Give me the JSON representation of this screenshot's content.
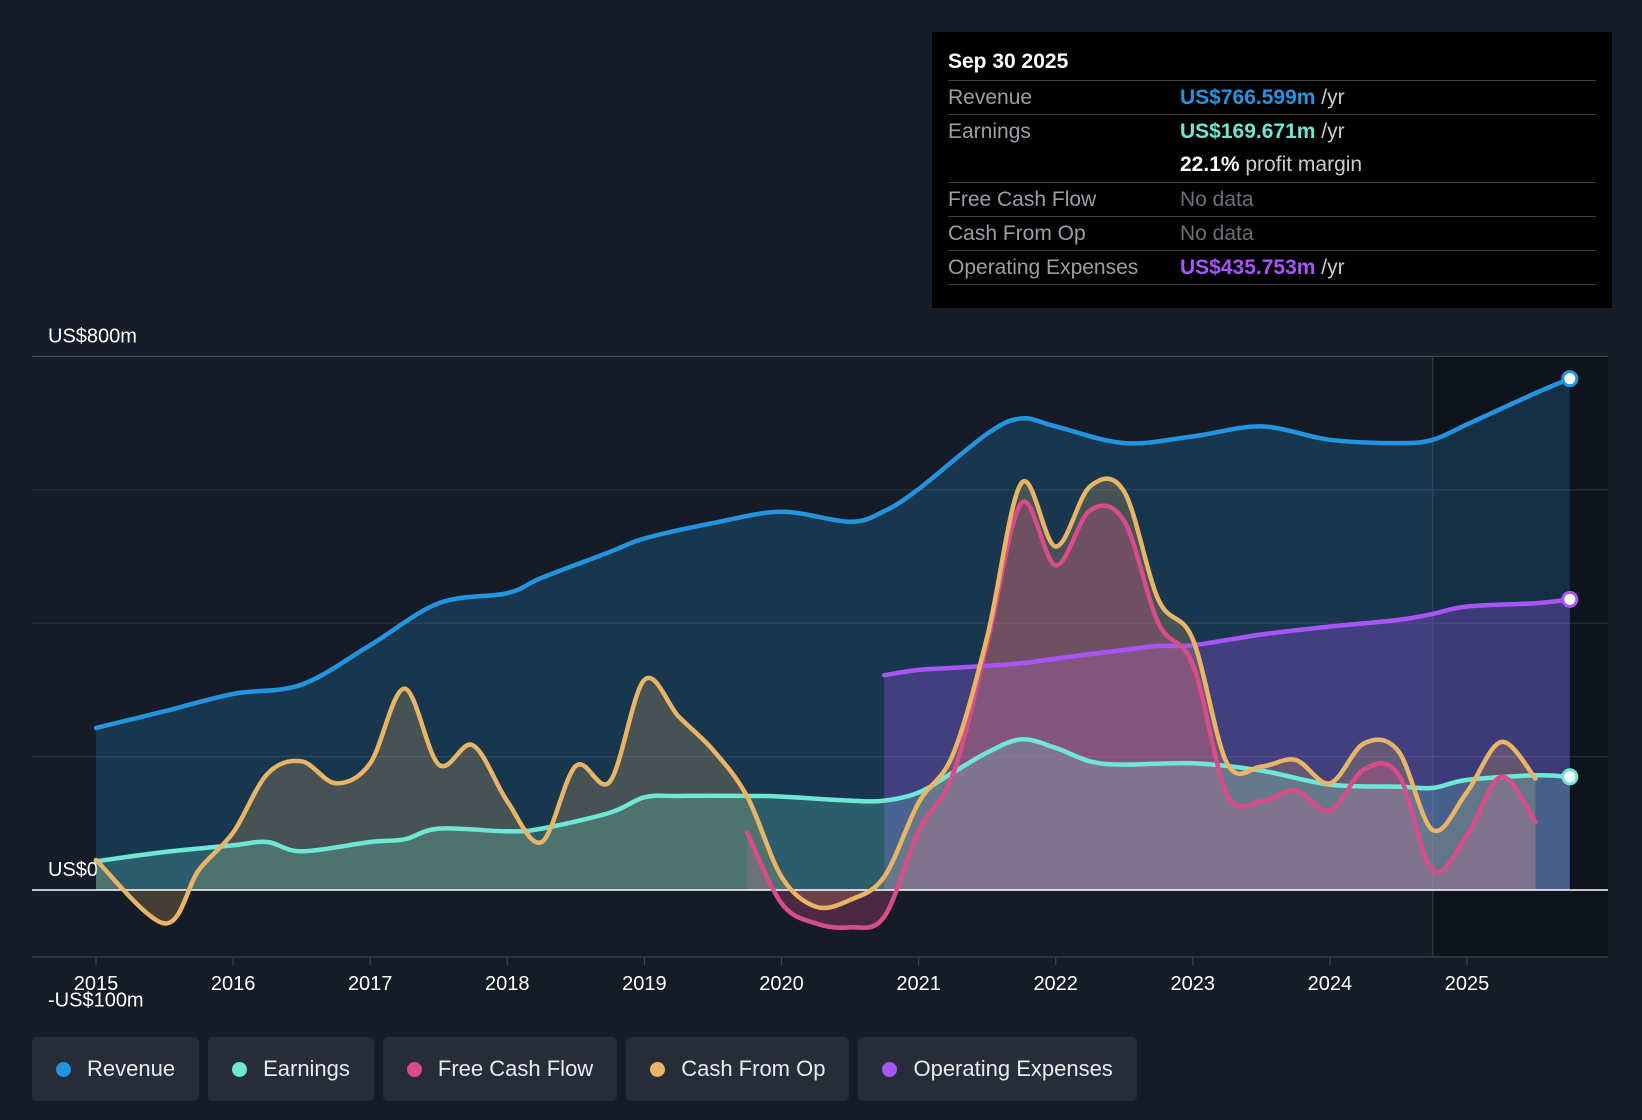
{
  "tooltip": {
    "date": "Sep 30 2025",
    "rows": [
      {
        "label": "Revenue",
        "value": "US$766.599m",
        "unit": "/yr",
        "color": "#2394df"
      },
      {
        "label": "Earnings",
        "value": "US$169.671m",
        "unit": "/yr",
        "color": "#6ee7d4"
      },
      {
        "label": "",
        "value": "22.1%",
        "unit": "profit margin",
        "color": "#ffffff"
      },
      {
        "label": "Free Cash Flow",
        "value": "No data",
        "unit": "",
        "color": "#6b6f76"
      },
      {
        "label": "Cash From Op",
        "value": "No data",
        "unit": "",
        "color": "#6b6f76"
      },
      {
        "label": "Operating Expenses",
        "value": "US$435.753m",
        "unit": "/yr",
        "color": "#a855f7"
      }
    ]
  },
  "legend": [
    {
      "label": "Revenue",
      "color": "#2394df"
    },
    {
      "label": "Earnings",
      "color": "#6ee7d4"
    },
    {
      "label": "Free Cash Flow",
      "color": "#d94c8a"
    },
    {
      "label": "Cash From Op",
      "color": "#e8b466"
    },
    {
      "label": "Operating Expenses",
      "color": "#a855f7"
    }
  ],
  "chart_data": {
    "type": "area",
    "title": "",
    "y_axis_labels": [
      "US$800m",
      "US$0",
      "-US$100m"
    ],
    "ylim": [
      -100,
      800
    ],
    "xlim": [
      2015,
      2025.75
    ],
    "x_ticks": [
      "2015",
      "2016",
      "2017",
      "2018",
      "2019",
      "2020",
      "2021",
      "2022",
      "2023",
      "2024",
      "2025"
    ],
    "forecast_shade_start": 2024.75,
    "series": [
      {
        "name": "Revenue",
        "color": "#2394df",
        "points": [
          [
            2015,
            243
          ],
          [
            2015.5,
            268
          ],
          [
            2016,
            294
          ],
          [
            2016.5,
            308
          ],
          [
            2017,
            367
          ],
          [
            2017.5,
            430
          ],
          [
            2018,
            445
          ],
          [
            2018.25,
            468
          ],
          [
            2018.75,
            507
          ],
          [
            2019,
            527
          ],
          [
            2019.5,
            550
          ],
          [
            2020,
            567
          ],
          [
            2020.5,
            552
          ],
          [
            2020.75,
            568
          ],
          [
            2021,
            601
          ],
          [
            2021.5,
            684
          ],
          [
            2021.75,
            707
          ],
          [
            2022,
            695
          ],
          [
            2022.5,
            670
          ],
          [
            2023,
            680
          ],
          [
            2023.5,
            695
          ],
          [
            2024,
            675
          ],
          [
            2024.5,
            670
          ],
          [
            2024.75,
            675
          ],
          [
            2025,
            698
          ],
          [
            2025.5,
            745
          ],
          [
            2025.75,
            766.6
          ]
        ]
      },
      {
        "name": "Earnings",
        "color": "#6ee7d4",
        "points": [
          [
            2015,
            43
          ],
          [
            2015.5,
            57
          ],
          [
            2016,
            67
          ],
          [
            2016.25,
            72
          ],
          [
            2016.5,
            58
          ],
          [
            2017,
            72
          ],
          [
            2017.25,
            76
          ],
          [
            2017.5,
            92
          ],
          [
            2018,
            88
          ],
          [
            2018.25,
            92
          ],
          [
            2018.75,
            116
          ],
          [
            2019,
            139
          ],
          [
            2019.25,
            141
          ],
          [
            2019.75,
            141
          ],
          [
            2020,
            140
          ],
          [
            2020.5,
            134
          ],
          [
            2020.75,
            134
          ],
          [
            2021,
            146
          ],
          [
            2021.25,
            176
          ],
          [
            2021.5,
            206
          ],
          [
            2021.75,
            226
          ],
          [
            2022,
            213
          ],
          [
            2022.25,
            193
          ],
          [
            2022.5,
            188
          ],
          [
            2023,
            190
          ],
          [
            2023.5,
            179
          ],
          [
            2024,
            158
          ],
          [
            2024.5,
            155
          ],
          [
            2024.75,
            153
          ],
          [
            2025,
            165
          ],
          [
            2025.5,
            172
          ],
          [
            2025.75,
            169.7
          ]
        ]
      },
      {
        "name": "Free Cash Flow",
        "color": "#d94c8a",
        "start": 2019.75,
        "points": [
          [
            2019.75,
            86
          ],
          [
            2020,
            -20
          ],
          [
            2020.25,
            -50
          ],
          [
            2020.5,
            -56
          ],
          [
            2020.75,
            -40
          ],
          [
            2021,
            89
          ],
          [
            2021.25,
            173
          ],
          [
            2021.5,
            369
          ],
          [
            2021.75,
            580
          ],
          [
            2022,
            487
          ],
          [
            2022.25,
            569
          ],
          [
            2022.5,
            553
          ],
          [
            2022.75,
            400
          ],
          [
            2023,
            338
          ],
          [
            2023.25,
            143
          ],
          [
            2023.5,
            133
          ],
          [
            2023.75,
            149
          ],
          [
            2024,
            119
          ],
          [
            2024.25,
            181
          ],
          [
            2024.5,
            173
          ],
          [
            2024.75,
            30
          ],
          [
            2025,
            82
          ],
          [
            2025.25,
            170
          ],
          [
            2025.5,
            102
          ]
        ]
      },
      {
        "name": "Cash From Op",
        "color": "#e8b466",
        "points": [
          [
            2015,
            45
          ],
          [
            2015.5,
            -50
          ],
          [
            2015.75,
            30
          ],
          [
            2016,
            86
          ],
          [
            2016.25,
            174
          ],
          [
            2016.5,
            193
          ],
          [
            2016.75,
            160
          ],
          [
            2017,
            190
          ],
          [
            2017.25,
            302
          ],
          [
            2017.5,
            188
          ],
          [
            2017.75,
            217
          ],
          [
            2018,
            133
          ],
          [
            2018.25,
            72
          ],
          [
            2018.5,
            186
          ],
          [
            2018.75,
            163
          ],
          [
            2019,
            315
          ],
          [
            2019.25,
            260
          ],
          [
            2019.5,
            210
          ],
          [
            2019.75,
            140
          ],
          [
            2020,
            20
          ],
          [
            2020.25,
            -25
          ],
          [
            2020.5,
            -15
          ],
          [
            2020.75,
            20
          ],
          [
            2021,
            131
          ],
          [
            2021.25,
            203
          ],
          [
            2021.5,
            379
          ],
          [
            2021.75,
            610
          ],
          [
            2022,
            515
          ],
          [
            2022.25,
            605
          ],
          [
            2022.5,
            597
          ],
          [
            2022.75,
            435
          ],
          [
            2023,
            376
          ],
          [
            2023.25,
            190
          ],
          [
            2023.5,
            185
          ],
          [
            2023.75,
            195
          ],
          [
            2024,
            160
          ],
          [
            2024.25,
            220
          ],
          [
            2024.5,
            208
          ],
          [
            2024.75,
            90
          ],
          [
            2025,
            147
          ],
          [
            2025.25,
            222
          ],
          [
            2025.5,
            167
          ]
        ]
      },
      {
        "name": "Operating Expenses",
        "color": "#a855f7",
        "start": 2020.75,
        "points": [
          [
            2020.75,
            322
          ],
          [
            2021,
            330
          ],
          [
            2021.25,
            333
          ],
          [
            2021.75,
            340
          ],
          [
            2022,
            347
          ],
          [
            2022.5,
            360
          ],
          [
            2022.75,
            366
          ],
          [
            2023,
            367
          ],
          [
            2023.5,
            383
          ],
          [
            2024,
            395
          ],
          [
            2024.5,
            405
          ],
          [
            2024.75,
            414
          ],
          [
            2025,
            425
          ],
          [
            2025.5,
            430
          ],
          [
            2025.75,
            435.8
          ]
        ]
      }
    ]
  }
}
